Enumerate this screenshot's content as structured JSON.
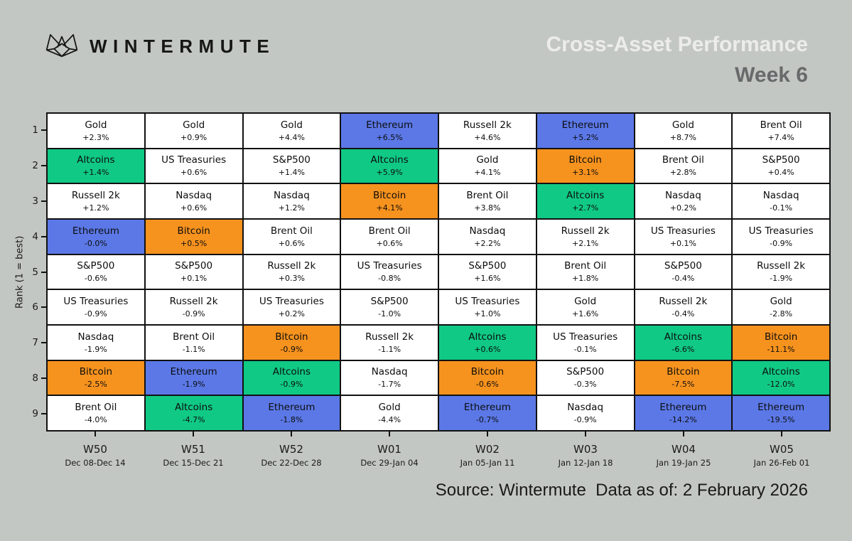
{
  "header": {
    "logo_text": "WINTERMUTE"
  },
  "footer": {
    "source_text": "Source: Wintermute  Data as of: 2 February 2026"
  },
  "colors": {
    "background": "#c3c7c3",
    "grid_line": "#111111",
    "default_cell": "#ffffff",
    "title": "#ececec",
    "subtitle": "#67696b"
  },
  "chart_data": {
    "type": "heatmap",
    "title": "Cross-Asset Performance",
    "subtitle": "Week 6",
    "ylabel": "Rank (1 = best)",
    "xlabel": "",
    "grid": true,
    "legend": false,
    "ranks": [
      1,
      2,
      3,
      4,
      5,
      6,
      7,
      8,
      9
    ],
    "asset_colors": {
      "Altcoins": "#10c985",
      "Ethereum": "#5b78e6",
      "Bitcoin": "#f6921e"
    },
    "columns": [
      {
        "week": "W50",
        "dates": "Dec 08-Dec 14",
        "cells": [
          {
            "asset": "Gold",
            "label": "+2.3%",
            "value": 2.3
          },
          {
            "asset": "Altcoins",
            "label": "+1.4%",
            "value": 1.4
          },
          {
            "asset": "Russell 2k",
            "label": "+1.2%",
            "value": 1.2
          },
          {
            "asset": "Ethereum",
            "label": "-0.0%",
            "value": -0.0
          },
          {
            "asset": "S&P500",
            "label": "-0.6%",
            "value": -0.6
          },
          {
            "asset": "US Treasuries",
            "label": "-0.9%",
            "value": -0.9
          },
          {
            "asset": "Nasdaq",
            "label": "-1.9%",
            "value": -1.9
          },
          {
            "asset": "Bitcoin",
            "label": "-2.5%",
            "value": -2.5
          },
          {
            "asset": "Brent Oil",
            "label": "-4.0%",
            "value": -4.0
          }
        ]
      },
      {
        "week": "W51",
        "dates": "Dec 15-Dec 21",
        "cells": [
          {
            "asset": "Gold",
            "label": "+0.9%",
            "value": 0.9
          },
          {
            "asset": "US Treasuries",
            "label": "+0.6%",
            "value": 0.6
          },
          {
            "asset": "Nasdaq",
            "label": "+0.6%",
            "value": 0.6
          },
          {
            "asset": "Bitcoin",
            "label": "+0.5%",
            "value": 0.5
          },
          {
            "asset": "S&P500",
            "label": "+0.1%",
            "value": 0.1
          },
          {
            "asset": "Russell 2k",
            "label": "-0.9%",
            "value": -0.9
          },
          {
            "asset": "Brent Oil",
            "label": "-1.1%",
            "value": -1.1
          },
          {
            "asset": "Ethereum",
            "label": "-1.9%",
            "value": -1.9
          },
          {
            "asset": "Altcoins",
            "label": "-4.7%",
            "value": -4.7
          }
        ]
      },
      {
        "week": "W52",
        "dates": "Dec 22-Dec 28",
        "cells": [
          {
            "asset": "Gold",
            "label": "+4.4%",
            "value": 4.4
          },
          {
            "asset": "S&P500",
            "label": "+1.4%",
            "value": 1.4
          },
          {
            "asset": "Nasdaq",
            "label": "+1.2%",
            "value": 1.2
          },
          {
            "asset": "Brent Oil",
            "label": "+0.6%",
            "value": 0.6
          },
          {
            "asset": "Russell 2k",
            "label": "+0.3%",
            "value": 0.3
          },
          {
            "asset": "US Treasuries",
            "label": "+0.2%",
            "value": 0.2
          },
          {
            "asset": "Bitcoin",
            "label": "-0.9%",
            "value": -0.9
          },
          {
            "asset": "Altcoins",
            "label": "-0.9%",
            "value": -0.9
          },
          {
            "asset": "Ethereum",
            "label": "-1.8%",
            "value": -1.8
          }
        ]
      },
      {
        "week": "W01",
        "dates": "Dec 29-Jan 04",
        "cells": [
          {
            "asset": "Ethereum",
            "label": "+6.5%",
            "value": 6.5
          },
          {
            "asset": "Altcoins",
            "label": "+5.9%",
            "value": 5.9
          },
          {
            "asset": "Bitcoin",
            "label": "+4.1%",
            "value": 4.1
          },
          {
            "asset": "Brent Oil",
            "label": "+0.6%",
            "value": 0.6
          },
          {
            "asset": "US Treasuries",
            "label": "-0.8%",
            "value": -0.8
          },
          {
            "asset": "S&P500",
            "label": "-1.0%",
            "value": -1.0
          },
          {
            "asset": "Russell 2k",
            "label": "-1.1%",
            "value": -1.1
          },
          {
            "asset": "Nasdaq",
            "label": "-1.7%",
            "value": -1.7
          },
          {
            "asset": "Gold",
            "label": "-4.4%",
            "value": -4.4
          }
        ]
      },
      {
        "week": "W02",
        "dates": "Jan 05-Jan 11",
        "cells": [
          {
            "asset": "Russell 2k",
            "label": "+4.6%",
            "value": 4.6
          },
          {
            "asset": "Gold",
            "label": "+4.1%",
            "value": 4.1
          },
          {
            "asset": "Brent Oil",
            "label": "+3.8%",
            "value": 3.8
          },
          {
            "asset": "Nasdaq",
            "label": "+2.2%",
            "value": 2.2
          },
          {
            "asset": "S&P500",
            "label": "+1.6%",
            "value": 1.6
          },
          {
            "asset": "US Treasuries",
            "label": "+1.0%",
            "value": 1.0
          },
          {
            "asset": "Altcoins",
            "label": "+0.6%",
            "value": 0.6
          },
          {
            "asset": "Bitcoin",
            "label": "-0.6%",
            "value": -0.6
          },
          {
            "asset": "Ethereum",
            "label": "-0.7%",
            "value": -0.7
          }
        ]
      },
      {
        "week": "W03",
        "dates": "Jan 12-Jan 18",
        "cells": [
          {
            "asset": "Ethereum",
            "label": "+5.2%",
            "value": 5.2
          },
          {
            "asset": "Bitcoin",
            "label": "+3.1%",
            "value": 3.1
          },
          {
            "asset": "Altcoins",
            "label": "+2.7%",
            "value": 2.7
          },
          {
            "asset": "Russell 2k",
            "label": "+2.1%",
            "value": 2.1
          },
          {
            "asset": "Brent Oil",
            "label": "+1.8%",
            "value": 1.8
          },
          {
            "asset": "Gold",
            "label": "+1.6%",
            "value": 1.6
          },
          {
            "asset": "US Treasuries",
            "label": "-0.1%",
            "value": -0.1
          },
          {
            "asset": "S&P500",
            "label": "-0.3%",
            "value": -0.3
          },
          {
            "asset": "Nasdaq",
            "label": "-0.9%",
            "value": -0.9
          }
        ]
      },
      {
        "week": "W04",
        "dates": "Jan 19-Jan 25",
        "cells": [
          {
            "asset": "Gold",
            "label": "+8.7%",
            "value": 8.7
          },
          {
            "asset": "Brent Oil",
            "label": "+2.8%",
            "value": 2.8
          },
          {
            "asset": "Nasdaq",
            "label": "+0.2%",
            "value": 0.2
          },
          {
            "asset": "US Treasuries",
            "label": "+0.1%",
            "value": 0.1
          },
          {
            "asset": "S&P500",
            "label": "-0.4%",
            "value": -0.4
          },
          {
            "asset": "Russell 2k",
            "label": "-0.4%",
            "value": -0.4
          },
          {
            "asset": "Altcoins",
            "label": "-6.6%",
            "value": -6.6
          },
          {
            "asset": "Bitcoin",
            "label": "-7.5%",
            "value": -7.5
          },
          {
            "asset": "Ethereum",
            "label": "-14.2%",
            "value": -14.2
          }
        ]
      },
      {
        "week": "W05",
        "dates": "Jan 26-Feb 01",
        "cells": [
          {
            "asset": "Brent Oil",
            "label": "+7.4%",
            "value": 7.4
          },
          {
            "asset": "S&P500",
            "label": "+0.4%",
            "value": 0.4
          },
          {
            "asset": "Nasdaq",
            "label": "-0.1%",
            "value": -0.1
          },
          {
            "asset": "US Treasuries",
            "label": "-0.9%",
            "value": -0.9
          },
          {
            "asset": "Russell 2k",
            "label": "-1.9%",
            "value": -1.9
          },
          {
            "asset": "Gold",
            "label": "-2.8%",
            "value": -2.8
          },
          {
            "asset": "Bitcoin",
            "label": "-11.1%",
            "value": -11.1
          },
          {
            "asset": "Altcoins",
            "label": "-12.0%",
            "value": -12.0
          },
          {
            "asset": "Ethereum",
            "label": "-19.5%",
            "value": -19.5
          }
        ]
      }
    ]
  }
}
